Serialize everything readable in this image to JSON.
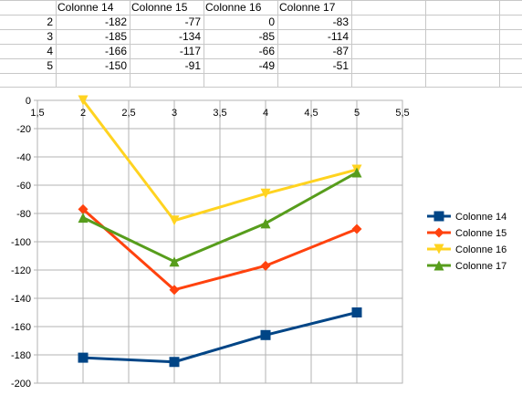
{
  "sheet": {
    "headers": [
      "Colonne 14",
      "Colonne 15",
      "Colonne 16",
      "Colonne 17"
    ],
    "rows": [
      {
        "label": "2",
        "values": [
          "-182",
          "-77",
          "0",
          "-83"
        ]
      },
      {
        "label": "3",
        "values": [
          "-185",
          "-134",
          "-85",
          "-114"
        ]
      },
      {
        "label": "4",
        "values": [
          "-166",
          "-117",
          "-66",
          "-87"
        ]
      },
      {
        "label": "5",
        "values": [
          "-150",
          "-91",
          "-49",
          "-51"
        ]
      }
    ]
  },
  "chart_data": {
    "type": "line",
    "x": [
      2,
      3,
      4,
      5
    ],
    "xlim": [
      1.5,
      5.5
    ],
    "ylim": [
      -200,
      0
    ],
    "xticks": [
      "1,5",
      "2",
      "2,5",
      "3",
      "3,5",
      "4",
      "4,5",
      "5",
      "5,5"
    ],
    "yticks": [
      "0",
      "-20",
      "-40",
      "-60",
      "-80",
      "-100",
      "-120",
      "-140",
      "-160",
      "-180",
      "-200"
    ],
    "grid": true,
    "legend_position": "right",
    "series": [
      {
        "name": "Colonne 14",
        "values": [
          -182,
          -185,
          -166,
          -150
        ],
        "color": "#004586",
        "marker": "square"
      },
      {
        "name": "Colonne 15",
        "values": [
          -77,
          -134,
          -117,
          -91
        ],
        "color": "#ff420e",
        "marker": "diamond"
      },
      {
        "name": "Colonne 16",
        "values": [
          0,
          -85,
          -66,
          -49
        ],
        "color": "#ffd320",
        "marker": "triangle-down"
      },
      {
        "name": "Colonne 17",
        "values": [
          -83,
          -114,
          -87,
          -51
        ],
        "color": "#579d1c",
        "marker": "triangle-up"
      }
    ]
  }
}
